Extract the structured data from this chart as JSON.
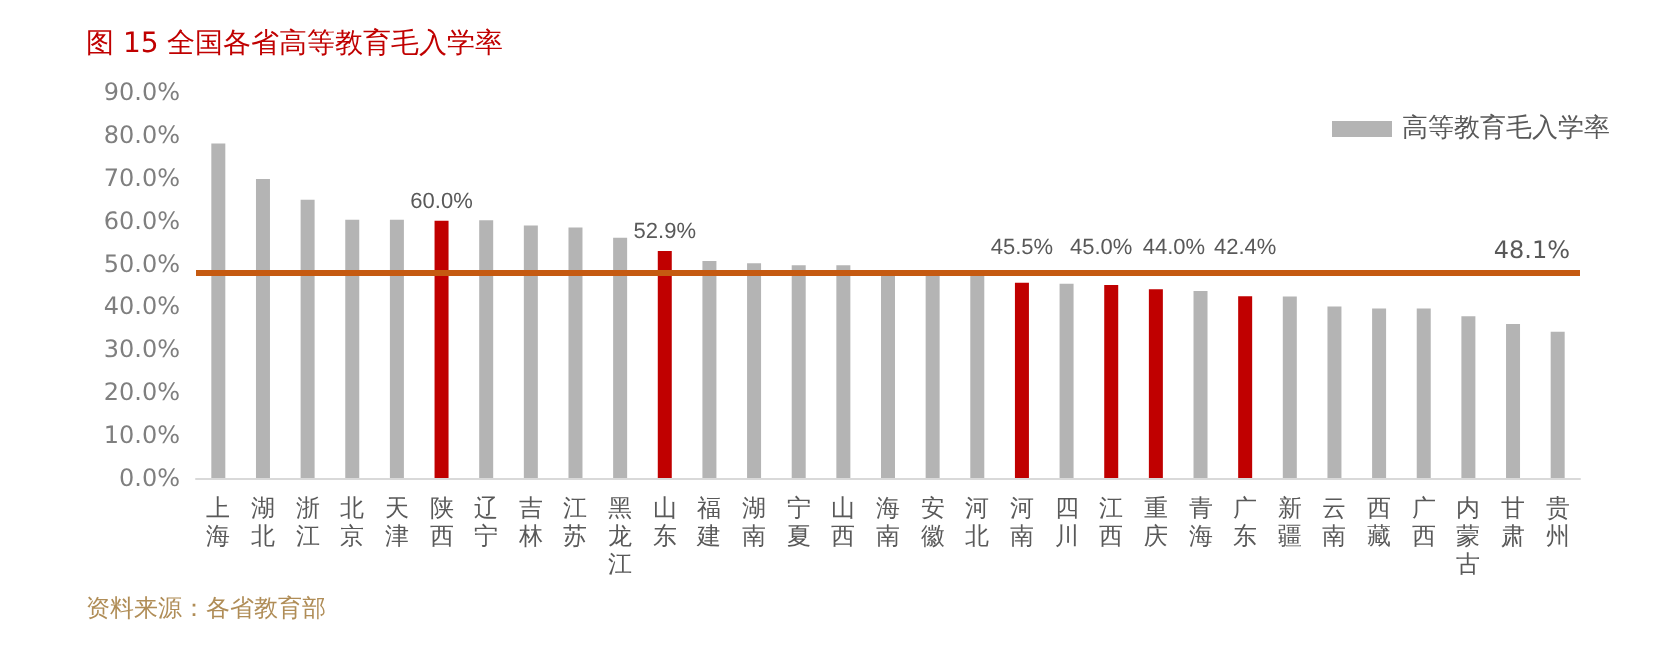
{
  "chart_data": {
    "type": "bar",
    "title": "图 15 全国各省高等教育毛入学率",
    "categories": [
      "上海",
      "湖北",
      "浙江",
      "北京",
      "天津",
      "陕西",
      "辽宁",
      "吉林",
      "江苏",
      "黑龙江",
      "山东",
      "福建",
      "湖南",
      "宁夏",
      "山西",
      "海南",
      "安徽",
      "河北",
      "河南",
      "四川",
      "江西",
      "重庆",
      "青海",
      "广东",
      "新疆",
      "云南",
      "西藏",
      "广西",
      "内蒙古",
      "甘肃",
      "贵州"
    ],
    "series": [
      {
        "name": "高等教育毛入学率",
        "color": "#b4b4b4",
        "values": [
          78.0,
          69.7,
          64.9,
          60.2,
          60.2,
          60.0,
          60.1,
          58.9,
          58.4,
          56.0,
          52.9,
          50.6,
          50.1,
          49.6,
          49.6,
          48.0,
          47.9,
          47.8,
          45.5,
          45.3,
          45.0,
          44.0,
          43.6,
          42.4,
          42.3,
          40.0,
          39.5,
          39.5,
          37.7,
          35.9,
          34.1
        ],
        "colors": [
          "#b4b4b4",
          "#b4b4b4",
          "#b4b4b4",
          "#b4b4b4",
          "#b4b4b4",
          "#c00000",
          "#b4b4b4",
          "#b4b4b4",
          "#b4b4b4",
          "#b4b4b4",
          "#c00000",
          "#b4b4b4",
          "#b4b4b4",
          "#b4b4b4",
          "#b4b4b4",
          "#b4b4b4",
          "#b4b4b4",
          "#b4b4b4",
          "#c00000",
          "#b4b4b4",
          "#c00000",
          "#c00000",
          "#b4b4b4",
          "#c00000",
          "#b4b4b4",
          "#b4b4b4",
          "#b4b4b4",
          "#b4b4b4",
          "#b4b4b4",
          "#b4b4b4",
          "#b4b4b4"
        ],
        "value_labels": [
          null,
          null,
          null,
          null,
          null,
          "60.0%",
          null,
          null,
          null,
          null,
          "52.9%",
          null,
          null,
          null,
          null,
          null,
          null,
          null,
          "45.5%",
          null,
          "45.0%",
          "44.0%",
          null,
          "42.4%",
          null,
          null,
          null,
          null,
          null,
          null,
          null
        ]
      }
    ],
    "ylim": [
      0,
      90
    ],
    "yticks": [
      {
        "value": 0,
        "label": "0.0%"
      },
      {
        "value": 10,
        "label": "10.0%"
      },
      {
        "value": 20,
        "label": "20.0%"
      },
      {
        "value": 30,
        "label": "30.0%"
      },
      {
        "value": 40,
        "label": "40.0%"
      },
      {
        "value": 50,
        "label": "50.0%"
      },
      {
        "value": 60,
        "label": "60.0%"
      },
      {
        "value": 70,
        "label": "70.0%"
      },
      {
        "value": 80,
        "label": "80.0%"
      },
      {
        "value": 90,
        "label": "90.0%"
      }
    ],
    "ref_lines": [
      {
        "axis": "y",
        "value": 48.1,
        "label": "48.1%",
        "color": "#c55a11"
      }
    ],
    "grid": false,
    "legend": "top right",
    "annotations": [
      "资料来源：各省教育部"
    ]
  }
}
